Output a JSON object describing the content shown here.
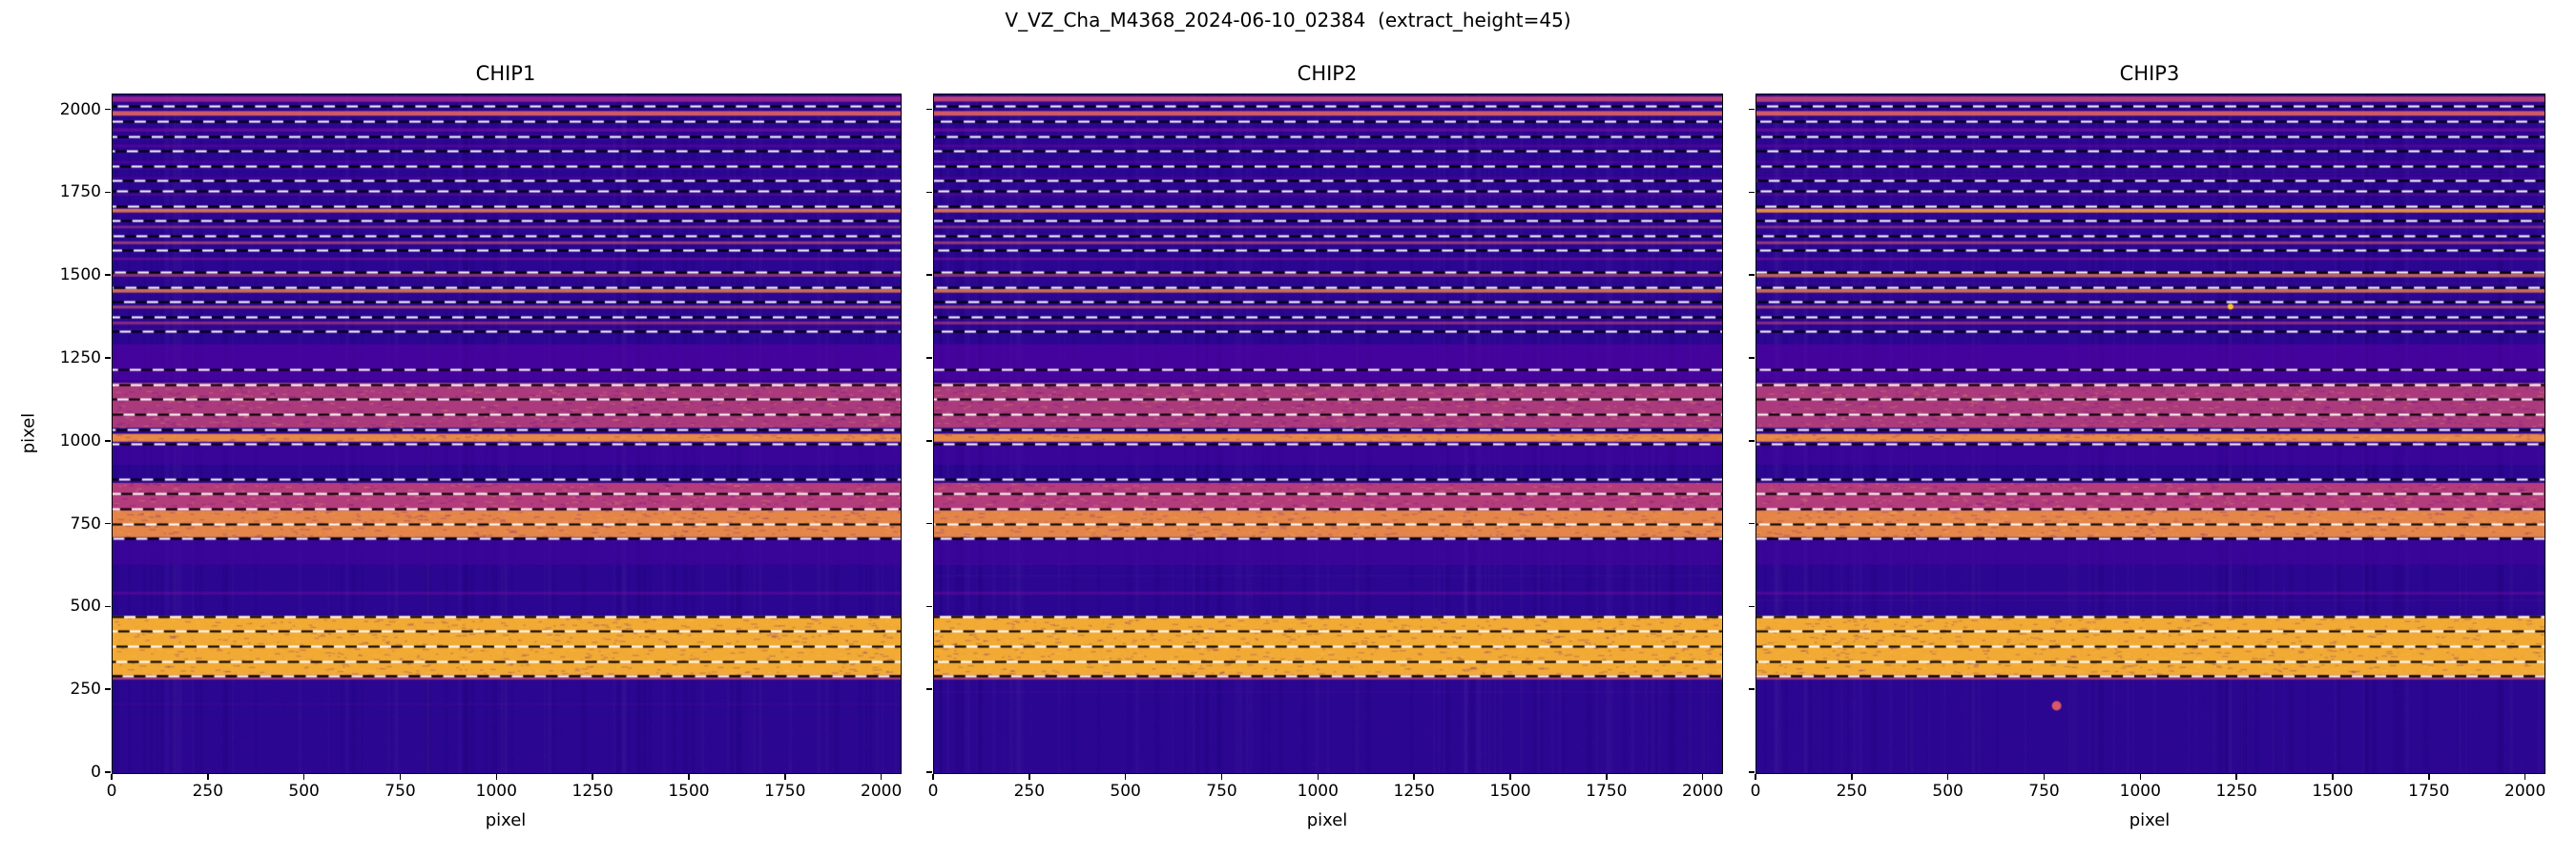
{
  "chart_data": {
    "type": "heatmap",
    "title": "V_VZ_Cha_M4368_2024-06-10_02384  (extract_height=45)",
    "extract_height": 45,
    "xlabel": "pixel",
    "ylabel": "pixel",
    "xlim": [
      0,
      2048
    ],
    "ylim": [
      0,
      2048
    ],
    "xticks": [
      0,
      250,
      500,
      750,
      1000,
      1250,
      1500,
      1750,
      2000
    ],
    "yticks": [
      0,
      250,
      500,
      750,
      1000,
      1250,
      1500,
      1750,
      2000
    ],
    "colors": {
      "background": "#2a0691",
      "speckle": "#b12a90",
      "spine": "#000000",
      "dash_white": "#ffffff",
      "dash_black": "#000000"
    },
    "panels": [
      {
        "title": "CHIP1",
        "seed": 11,
        "extra_bands": [],
        "dots": []
      },
      {
        "title": "CHIP2",
        "seed": 22,
        "extra_bands": [
          {
            "y0": 2028,
            "y1": 2042,
            "color": "#e16462",
            "alpha": 0.5
          }
        ],
        "dots": []
      },
      {
        "title": "CHIP3",
        "seed": 33,
        "extra_bands": [
          {
            "y0": 1496,
            "y1": 1506,
            "color": "#f89441",
            "alpha": 0.5
          },
          {
            "y0": 1692,
            "y1": 1703,
            "color": "#fdb32f",
            "alpha": 0.45
          },
          {
            "y0": 2026,
            "y1": 2042,
            "color": "#e16462",
            "alpha": 0.45
          }
        ],
        "dots": [
          {
            "x": 780,
            "y": 203,
            "r": 5,
            "color": "#d8576b"
          },
          {
            "x": 1232,
            "y": 1408,
            "r": 3,
            "color": "#fdc527"
          }
        ]
      }
    ],
    "bands": [
      {
        "y0": 2026,
        "y1": 2042,
        "color": "#b12a90",
        "alpha": 0.75
      },
      {
        "y0": 1984,
        "y1": 1998,
        "color": "#e16462",
        "alpha": 0.9
      },
      {
        "y0": 1936,
        "y1": 1946,
        "color": "#8f0da4",
        "alpha": 0.5
      },
      {
        "y0": 1888,
        "y1": 1897,
        "color": "#7e03a8",
        "alpha": 0.42
      },
      {
        "y0": 1840,
        "y1": 1848,
        "color": "#7e03a8",
        "alpha": 0.34
      },
      {
        "y0": 1792,
        "y1": 1800,
        "color": "#7e03a8",
        "alpha": 0.28
      },
      {
        "y0": 1742,
        "y1": 1750,
        "color": "#8f0da4",
        "alpha": 0.28
      },
      {
        "y0": 1692,
        "y1": 1703,
        "color": "#f2844b",
        "alpha": 0.85
      },
      {
        "y0": 1644,
        "y1": 1652,
        "color": "#cc4778",
        "alpha": 0.5
      },
      {
        "y0": 1596,
        "y1": 1605,
        "color": "#e16462",
        "alpha": 0.55
      },
      {
        "y0": 1548,
        "y1": 1556,
        "color": "#9c179e",
        "alpha": 0.42
      },
      {
        "y0": 1498,
        "y1": 1507,
        "color": "#d8576b",
        "alpha": 0.5
      },
      {
        "y0": 1450,
        "y1": 1461,
        "color": "#f2844b",
        "alpha": 0.8
      },
      {
        "y0": 1402,
        "y1": 1411,
        "color": "#e16462",
        "alpha": 0.6
      },
      {
        "y0": 1354,
        "y1": 1363,
        "color": "#cc4778",
        "alpha": 0.55
      },
      {
        "y0": 1185,
        "y1": 1295,
        "color": "#5601a4",
        "alpha": 0.6
      },
      {
        "y0": 1042,
        "y1": 1178,
        "color": "#cc4778",
        "alpha": 0.8
      },
      {
        "y0": 1000,
        "y1": 1024,
        "color": "#f89441",
        "alpha": 0.92
      },
      {
        "y0": 930,
        "y1": 1000,
        "color": "#46039f",
        "alpha": 0.5
      },
      {
        "y0": 792,
        "y1": 876,
        "color": "#cc4778",
        "alpha": 0.85
      },
      {
        "y0": 712,
        "y1": 792,
        "color": "#f89441",
        "alpha": 0.9
      },
      {
        "y0": 628,
        "y1": 704,
        "color": "#46039f",
        "alpha": 0.55
      },
      {
        "y0": 538,
        "y1": 548,
        "color": "#8f0da4",
        "alpha": 0.32
      },
      {
        "y0": 296,
        "y1": 474,
        "color": "#fdb32f",
        "alpha": 0.95
      },
      {
        "y0": 282,
        "y1": 296,
        "color": "#e16462",
        "alpha": 0.6
      }
    ],
    "dashed_lines_y": [
      2012,
      1967,
      1922,
      1878,
      1833,
      1788,
      1757,
      1712,
      1668,
      1623,
      1578,
      1512,
      1467,
      1423,
      1378,
      1333,
      1217,
      1172,
      1128,
      1083,
      1038,
      993,
      887,
      843,
      798,
      753,
      708,
      472,
      428,
      383,
      338,
      293
    ],
    "dash_style": {
      "dash": 12,
      "gap": 12,
      "width": 2
    }
  }
}
